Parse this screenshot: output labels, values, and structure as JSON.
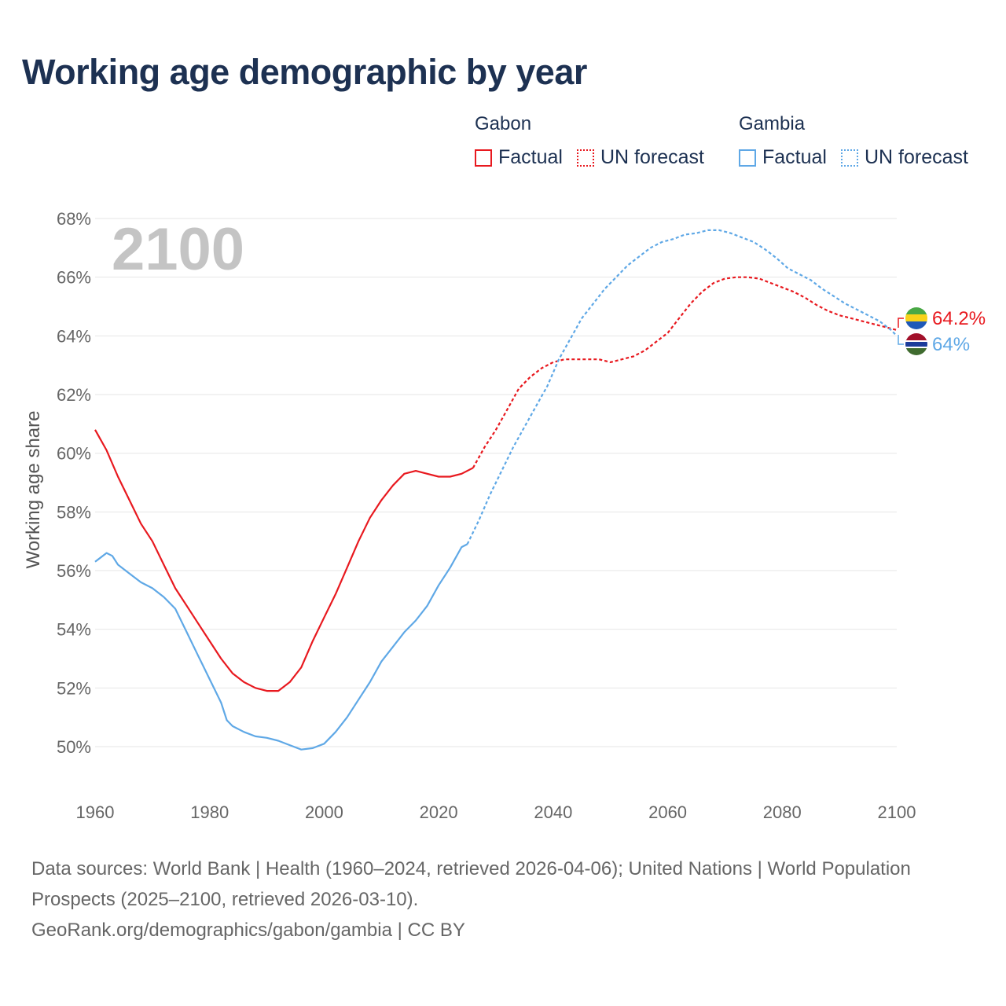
{
  "header": {
    "title": "Working age demographic by year"
  },
  "legend": {
    "groups": [
      {
        "name": "Gabon",
        "factual_label": "Factual",
        "forecast_label": "UN forecast",
        "color": "#e8191f"
      },
      {
        "name": "Gambia",
        "factual_label": "Factual",
        "forecast_label": "UN forecast",
        "color": "#5fa8e6"
      }
    ]
  },
  "year_label": "2100",
  "end_labels": {
    "gabon": "64.2%",
    "gambia": "64%"
  },
  "footer": {
    "sources": "Data sources: World Bank | Health (1960–2024, retrieved 2026-04-06); United Nations | World Population Prospects (2025–2100, retrieved 2026-03-10).",
    "credit": "GeoRank.org/demographics/gabon/gambia | CC BY"
  },
  "chart_data": {
    "type": "line",
    "title": "Working age demographic by year",
    "xlabel": "",
    "ylabel": "Working age share",
    "xlim": [
      1960,
      2100
    ],
    "ylim": [
      49,
      68
    ],
    "x_ticks": [
      1960,
      1980,
      2000,
      2020,
      2040,
      2060,
      2080,
      2100
    ],
    "y_ticks": [
      50,
      52,
      54,
      56,
      58,
      60,
      62,
      64,
      66,
      68
    ],
    "y_tick_labels": [
      "50%",
      "52%",
      "54%",
      "56%",
      "58%",
      "60%",
      "62%",
      "64%",
      "66%",
      "68%"
    ],
    "x_tick_labels": [
      "1960",
      "1980",
      "2000",
      "2020",
      "2040",
      "2060",
      "2080",
      "2100"
    ],
    "grid": true,
    "series": [
      {
        "name": "Gabon",
        "segment": "Factual",
        "style": "solid",
        "color": "#e8191f",
        "points": [
          [
            1960,
            60.8
          ],
          [
            1962,
            60.1
          ],
          [
            1964,
            59.2
          ],
          [
            1966,
            58.4
          ],
          [
            1968,
            57.6
          ],
          [
            1970,
            57.0
          ],
          [
            1972,
            56.2
          ],
          [
            1974,
            55.4
          ],
          [
            1976,
            54.8
          ],
          [
            1978,
            54.2
          ],
          [
            1980,
            53.6
          ],
          [
            1982,
            53.0
          ],
          [
            1984,
            52.5
          ],
          [
            1986,
            52.2
          ],
          [
            1988,
            52.0
          ],
          [
            1990,
            51.9
          ],
          [
            1992,
            51.9
          ],
          [
            1994,
            52.2
          ],
          [
            1996,
            52.7
          ],
          [
            1998,
            53.6
          ],
          [
            2000,
            54.4
          ],
          [
            2002,
            55.2
          ],
          [
            2004,
            56.1
          ],
          [
            2006,
            57.0
          ],
          [
            2008,
            57.8
          ],
          [
            2010,
            58.4
          ],
          [
            2012,
            58.9
          ],
          [
            2014,
            59.3
          ],
          [
            2016,
            59.4
          ],
          [
            2018,
            59.3
          ],
          [
            2020,
            59.2
          ],
          [
            2022,
            59.2
          ],
          [
            2024,
            59.3
          ],
          [
            2026,
            59.5
          ]
        ]
      },
      {
        "name": "Gabon",
        "segment": "UN forecast",
        "style": "dashed",
        "color": "#e8191f",
        "points": [
          [
            2026,
            59.5
          ],
          [
            2028,
            60.2
          ],
          [
            2030,
            60.8
          ],
          [
            2032,
            61.5
          ],
          [
            2034,
            62.2
          ],
          [
            2036,
            62.6
          ],
          [
            2038,
            62.9
          ],
          [
            2040,
            63.1
          ],
          [
            2042,
            63.2
          ],
          [
            2044,
            63.2
          ],
          [
            2046,
            63.2
          ],
          [
            2048,
            63.2
          ],
          [
            2050,
            63.1
          ],
          [
            2052,
            63.2
          ],
          [
            2054,
            63.3
          ],
          [
            2056,
            63.5
          ],
          [
            2058,
            63.8
          ],
          [
            2060,
            64.1
          ],
          [
            2062,
            64.6
          ],
          [
            2064,
            65.1
          ],
          [
            2066,
            65.5
          ],
          [
            2068,
            65.8
          ],
          [
            2070,
            65.95
          ],
          [
            2072,
            66.0
          ],
          [
            2074,
            66.0
          ],
          [
            2076,
            65.95
          ],
          [
            2078,
            65.8
          ],
          [
            2080,
            65.65
          ],
          [
            2082,
            65.5
          ],
          [
            2084,
            65.3
          ],
          [
            2086,
            65.05
          ],
          [
            2088,
            64.85
          ],
          [
            2090,
            64.7
          ],
          [
            2092,
            64.6
          ],
          [
            2094,
            64.5
          ],
          [
            2096,
            64.4
          ],
          [
            2098,
            64.3
          ],
          [
            2100,
            64.2
          ]
        ]
      },
      {
        "name": "Gambia",
        "segment": "Factual",
        "style": "solid",
        "color": "#5fa8e6",
        "points": [
          [
            1960,
            56.3
          ],
          [
            1962,
            56.6
          ],
          [
            1963,
            56.5
          ],
          [
            1964,
            56.2
          ],
          [
            1966,
            55.9
          ],
          [
            1968,
            55.6
          ],
          [
            1970,
            55.4
          ],
          [
            1972,
            55.1
          ],
          [
            1974,
            54.7
          ],
          [
            1976,
            53.9
          ],
          [
            1978,
            53.1
          ],
          [
            1980,
            52.3
          ],
          [
            1982,
            51.5
          ],
          [
            1983,
            50.9
          ],
          [
            1984,
            50.7
          ],
          [
            1986,
            50.5
          ],
          [
            1988,
            50.35
          ],
          [
            1990,
            50.3
          ],
          [
            1992,
            50.2
          ],
          [
            1994,
            50.05
          ],
          [
            1996,
            49.9
          ],
          [
            1998,
            49.95
          ],
          [
            2000,
            50.1
          ],
          [
            2002,
            50.5
          ],
          [
            2004,
            51.0
          ],
          [
            2006,
            51.6
          ],
          [
            2008,
            52.2
          ],
          [
            2010,
            52.9
          ],
          [
            2012,
            53.4
          ],
          [
            2014,
            53.9
          ],
          [
            2016,
            54.3
          ],
          [
            2018,
            54.8
          ],
          [
            2020,
            55.5
          ],
          [
            2022,
            56.1
          ],
          [
            2024,
            56.8
          ],
          [
            2025,
            56.9
          ]
        ]
      },
      {
        "name": "Gambia",
        "segment": "UN forecast",
        "style": "dashed",
        "color": "#5fa8e6",
        "points": [
          [
            2025,
            56.9
          ],
          [
            2027,
            57.7
          ],
          [
            2029,
            58.6
          ],
          [
            2031,
            59.4
          ],
          [
            2033,
            60.2
          ],
          [
            2035,
            60.9
          ],
          [
            2037,
            61.6
          ],
          [
            2039,
            62.3
          ],
          [
            2041,
            63.2
          ],
          [
            2043,
            63.9
          ],
          [
            2045,
            64.6
          ],
          [
            2047,
            65.1
          ],
          [
            2049,
            65.6
          ],
          [
            2051,
            66.0
          ],
          [
            2053,
            66.4
          ],
          [
            2055,
            66.7
          ],
          [
            2057,
            67.0
          ],
          [
            2059,
            67.2
          ],
          [
            2061,
            67.3
          ],
          [
            2063,
            67.45
          ],
          [
            2065,
            67.5
          ],
          [
            2067,
            67.6
          ],
          [
            2069,
            67.6
          ],
          [
            2071,
            67.5
          ],
          [
            2073,
            67.35
          ],
          [
            2075,
            67.2
          ],
          [
            2077,
            66.95
          ],
          [
            2079,
            66.65
          ],
          [
            2081,
            66.3
          ],
          [
            2083,
            66.1
          ],
          [
            2085,
            65.9
          ],
          [
            2087,
            65.6
          ],
          [
            2089,
            65.35
          ],
          [
            2091,
            65.1
          ],
          [
            2093,
            64.9
          ],
          [
            2095,
            64.7
          ],
          [
            2097,
            64.5
          ],
          [
            2099,
            64.2
          ],
          [
            2100,
            64.0
          ]
        ]
      }
    ]
  }
}
